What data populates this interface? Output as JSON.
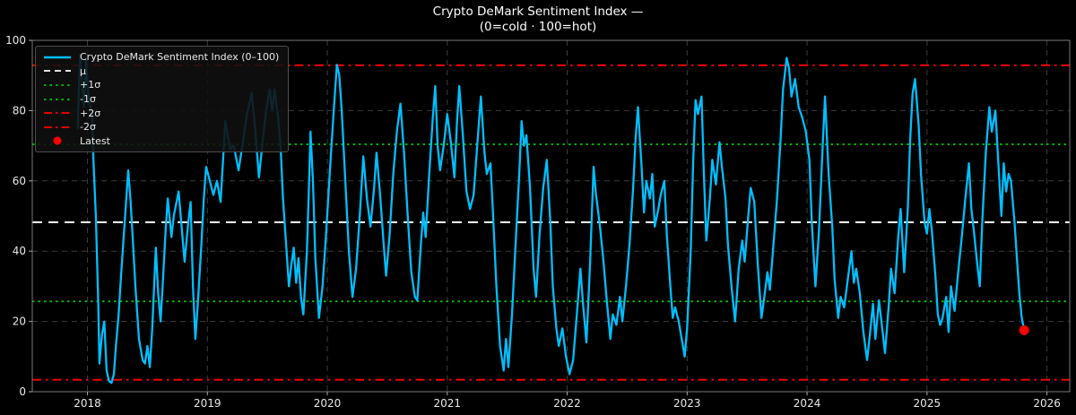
{
  "title": {
    "line1": "Crypto DeMark Sentiment Index —",
    "line2": "(0=cold · 100=hot)"
  },
  "legend": {
    "position": "upper left",
    "items": [
      {
        "label": "Crypto DeMark Sentiment Index (0–100)",
        "style": "solid",
        "color": "#00BFFF"
      },
      {
        "label": "μ",
        "style": "dashed",
        "color": "#FFFFFF"
      },
      {
        "label": "+1σ",
        "style": "dotted",
        "color": "#00CC00"
      },
      {
        "label": "-1σ",
        "style": "dotted",
        "color": "#00CC00"
      },
      {
        "label": "+2σ",
        "style": "dashdot",
        "color": "#FF0000"
      },
      {
        "label": "-2σ",
        "style": "dashdot",
        "color": "#FF0000"
      },
      {
        "label": "Latest",
        "style": "marker",
        "color": "#FF0000"
      }
    ]
  },
  "colors": {
    "background": "#000000",
    "text": "#e8e8e8",
    "grid": "#3d3d3d",
    "spine": "#787878",
    "series": "#00BFFF",
    "mean_line": "#FFFFFF",
    "sigma1_line": "#00CC00",
    "sigma2_line": "#FF0000",
    "latest_marker": "#FF0000"
  },
  "chart_data": {
    "type": "line",
    "title": "Crypto DeMark Sentiment Index —",
    "subtitle": "(0=cold · 100=hot)",
    "series_name": "Crypto DeMark Sentiment Index (0–100)",
    "xlabel": "",
    "ylabel": "",
    "xlim": [
      2017.54,
      2026.19
    ],
    "ylim": [
      0,
      100
    ],
    "x_ticks": [
      2018,
      2019,
      2020,
      2021,
      2022,
      2023,
      2024,
      2025,
      2026
    ],
    "y_ticks": [
      0,
      20,
      40,
      60,
      80,
      100
    ],
    "grid": true,
    "legend_position": "upper left",
    "stat_lines": {
      "mu": 48.2,
      "plus_1sigma": 70.4,
      "minus_1sigma": 25.7,
      "plus_2sigma": 92.9,
      "minus_2sigma": 3.4
    },
    "latest": {
      "x": 2025.81,
      "y": 17.5
    },
    "points": [
      [
        2017.92,
        75
      ],
      [
        2017.93,
        88
      ],
      [
        2017.94,
        96
      ],
      [
        2017.96,
        85
      ],
      [
        2017.97,
        81
      ],
      [
        2017.99,
        95
      ],
      [
        2018.0,
        87
      ],
      [
        2018.02,
        82
      ],
      [
        2018.04,
        78
      ],
      [
        2018.05,
        66
      ],
      [
        2018.07,
        50
      ],
      [
        2018.09,
        25
      ],
      [
        2018.1,
        8
      ],
      [
        2018.12,
        16
      ],
      [
        2018.14,
        20
      ],
      [
        2018.16,
        6
      ],
      [
        2018.18,
        3
      ],
      [
        2018.2,
        2.5
      ],
      [
        2018.22,
        5
      ],
      [
        2018.24,
        14
      ],
      [
        2018.26,
        22
      ],
      [
        2018.28,
        33
      ],
      [
        2018.31,
        48
      ],
      [
        2018.34,
        63
      ],
      [
        2018.36,
        54
      ],
      [
        2018.38,
        42
      ],
      [
        2018.4,
        30
      ],
      [
        2018.43,
        15
      ],
      [
        2018.46,
        9
      ],
      [
        2018.48,
        8
      ],
      [
        2018.5,
        13
      ],
      [
        2018.52,
        7
      ],
      [
        2018.54,
        18
      ],
      [
        2018.56,
        33
      ],
      [
        2018.57,
        41
      ],
      [
        2018.59,
        28
      ],
      [
        2018.61,
        20
      ],
      [
        2018.63,
        32
      ],
      [
        2018.65,
        45
      ],
      [
        2018.67,
        55
      ],
      [
        2018.7,
        44
      ],
      [
        2018.72,
        50
      ],
      [
        2018.76,
        57
      ],
      [
        2018.79,
        45
      ],
      [
        2018.81,
        37
      ],
      [
        2018.84,
        48
      ],
      [
        2018.86,
        54
      ],
      [
        2018.88,
        30
      ],
      [
        2018.9,
        15
      ],
      [
        2018.92,
        25
      ],
      [
        2018.95,
        42
      ],
      [
        2018.97,
        55
      ],
      [
        2018.99,
        64
      ],
      [
        2019.02,
        60
      ],
      [
        2019.05,
        56
      ],
      [
        2019.08,
        60
      ],
      [
        2019.11,
        54
      ],
      [
        2019.15,
        77
      ],
      [
        2019.19,
        69
      ],
      [
        2019.22,
        70
      ],
      [
        2019.26,
        63
      ],
      [
        2019.3,
        72
      ],
      [
        2019.33,
        79
      ],
      [
        2019.37,
        85
      ],
      [
        2019.4,
        74
      ],
      [
        2019.43,
        61
      ],
      [
        2019.46,
        71
      ],
      [
        2019.49,
        80
      ],
      [
        2019.52,
        86
      ],
      [
        2019.54,
        80
      ],
      [
        2019.56,
        86
      ],
      [
        2019.59,
        78
      ],
      [
        2019.61,
        70
      ],
      [
        2019.63,
        55
      ],
      [
        2019.66,
        40
      ],
      [
        2019.68,
        30
      ],
      [
        2019.7,
        36
      ],
      [
        2019.72,
        41
      ],
      [
        2019.74,
        31
      ],
      [
        2019.76,
        38
      ],
      [
        2019.78,
        27
      ],
      [
        2019.8,
        22
      ],
      [
        2019.83,
        40
      ],
      [
        2019.85,
        62
      ],
      [
        2019.86,
        74
      ],
      [
        2019.88,
        60
      ],
      [
        2019.9,
        38
      ],
      [
        2019.93,
        21
      ],
      [
        2019.96,
        30
      ],
      [
        2019.99,
        45
      ],
      [
        2020.02,
        62
      ],
      [
        2020.05,
        78
      ],
      [
        2020.08,
        93
      ],
      [
        2020.1,
        90
      ],
      [
        2020.12,
        80
      ],
      [
        2020.15,
        60
      ],
      [
        2020.18,
        40
      ],
      [
        2020.21,
        27
      ],
      [
        2020.24,
        35
      ],
      [
        2020.27,
        50
      ],
      [
        2020.3,
        67
      ],
      [
        2020.33,
        55
      ],
      [
        2020.36,
        47
      ],
      [
        2020.39,
        58
      ],
      [
        2020.41,
        68
      ],
      [
        2020.44,
        56
      ],
      [
        2020.47,
        42
      ],
      [
        2020.49,
        33
      ],
      [
        2020.52,
        45
      ],
      [
        2020.55,
        62
      ],
      [
        2020.58,
        74
      ],
      [
        2020.61,
        82
      ],
      [
        2020.64,
        68
      ],
      [
        2020.67,
        50
      ],
      [
        2020.7,
        34
      ],
      [
        2020.73,
        27
      ],
      [
        2020.75,
        26
      ],
      [
        2020.78,
        42
      ],
      [
        2020.8,
        51
      ],
      [
        2020.82,
        44
      ],
      [
        2020.85,
        62
      ],
      [
        2020.88,
        78
      ],
      [
        2020.9,
        87
      ],
      [
        2020.92,
        70
      ],
      [
        2020.94,
        63
      ],
      [
        2020.97,
        70
      ],
      [
        2021.0,
        79
      ],
      [
        2021.03,
        71
      ],
      [
        2021.06,
        61
      ],
      [
        2021.08,
        76
      ],
      [
        2021.1,
        87
      ],
      [
        2021.13,
        73
      ],
      [
        2021.16,
        57
      ],
      [
        2021.19,
        52
      ],
      [
        2021.22,
        56
      ],
      [
        2021.25,
        70
      ],
      [
        2021.28,
        84
      ],
      [
        2021.31,
        68
      ],
      [
        2021.33,
        62
      ],
      [
        2021.36,
        65
      ],
      [
        2021.38,
        52
      ],
      [
        2021.41,
        30
      ],
      [
        2021.44,
        13
      ],
      [
        2021.47,
        6
      ],
      [
        2021.49,
        15
      ],
      [
        2021.51,
        7
      ],
      [
        2021.54,
        22
      ],
      [
        2021.57,
        42
      ],
      [
        2021.6,
        62
      ],
      [
        2021.62,
        77
      ],
      [
        2021.64,
        70
      ],
      [
        2021.66,
        73
      ],
      [
        2021.69,
        58
      ],
      [
        2021.72,
        35
      ],
      [
        2021.74,
        27
      ],
      [
        2021.77,
        45
      ],
      [
        2021.8,
        58
      ],
      [
        2021.83,
        66
      ],
      [
        2021.86,
        48
      ],
      [
        2021.88,
        30
      ],
      [
        2021.91,
        18
      ],
      [
        2021.93,
        13
      ],
      [
        2021.96,
        18
      ],
      [
        2021.99,
        10
      ],
      [
        2022.02,
        5
      ],
      [
        2022.05,
        9
      ],
      [
        2022.08,
        22
      ],
      [
        2022.11,
        35
      ],
      [
        2022.13,
        26
      ],
      [
        2022.16,
        14
      ],
      [
        2022.19,
        36
      ],
      [
        2022.22,
        64
      ],
      [
        2022.24,
        56
      ],
      [
        2022.27,
        48
      ],
      [
        2022.3,
        38
      ],
      [
        2022.33,
        26
      ],
      [
        2022.36,
        15
      ],
      [
        2022.38,
        22
      ],
      [
        2022.41,
        19
      ],
      [
        2022.44,
        27
      ],
      [
        2022.46,
        20
      ],
      [
        2022.49,
        30
      ],
      [
        2022.52,
        42
      ],
      [
        2022.55,
        58
      ],
      [
        2022.57,
        72
      ],
      [
        2022.59,
        81
      ],
      [
        2022.62,
        64
      ],
      [
        2022.64,
        51
      ],
      [
        2022.66,
        60
      ],
      [
        2022.69,
        55
      ],
      [
        2022.71,
        62
      ],
      [
        2022.73,
        47
      ],
      [
        2022.76,
        52
      ],
      [
        2022.78,
        56
      ],
      [
        2022.81,
        60
      ],
      [
        2022.83,
        45
      ],
      [
        2022.86,
        30
      ],
      [
        2022.88,
        21
      ],
      [
        2022.9,
        24
      ],
      [
        2022.93,
        20
      ],
      [
        2022.95,
        16
      ],
      [
        2022.98,
        10
      ],
      [
        2023.0,
        18
      ],
      [
        2023.03,
        40
      ],
      [
        2023.05,
        65
      ],
      [
        2023.07,
        83
      ],
      [
        2023.09,
        79
      ],
      [
        2023.12,
        84
      ],
      [
        2023.14,
        62
      ],
      [
        2023.16,
        43
      ],
      [
        2023.19,
        55
      ],
      [
        2023.21,
        66
      ],
      [
        2023.24,
        59
      ],
      [
        2023.27,
        71
      ],
      [
        2023.29,
        64
      ],
      [
        2023.32,
        55
      ],
      [
        2023.34,
        42
      ],
      [
        2023.37,
        30
      ],
      [
        2023.4,
        20
      ],
      [
        2023.43,
        35
      ],
      [
        2023.46,
        43
      ],
      [
        2023.48,
        37
      ],
      [
        2023.51,
        50
      ],
      [
        2023.53,
        58
      ],
      [
        2023.56,
        54
      ],
      [
        2023.59,
        36
      ],
      [
        2023.62,
        21
      ],
      [
        2023.64,
        26
      ],
      [
        2023.67,
        34
      ],
      [
        2023.69,
        29
      ],
      [
        2023.72,
        42
      ],
      [
        2023.75,
        55
      ],
      [
        2023.78,
        72
      ],
      [
        2023.8,
        86
      ],
      [
        2023.83,
        95
      ],
      [
        2023.85,
        92
      ],
      [
        2023.87,
        84
      ],
      [
        2023.9,
        89
      ],
      [
        2023.93,
        81
      ],
      [
        2023.96,
        78
      ],
      [
        2023.99,
        74
      ],
      [
        2024.02,
        66
      ],
      [
        2024.04,
        48
      ],
      [
        2024.07,
        30
      ],
      [
        2024.1,
        46
      ],
      [
        2024.13,
        70
      ],
      [
        2024.15,
        84
      ],
      [
        2024.18,
        62
      ],
      [
        2024.21,
        47
      ],
      [
        2024.23,
        32
      ],
      [
        2024.26,
        21
      ],
      [
        2024.28,
        27
      ],
      [
        2024.31,
        24
      ],
      [
        2024.34,
        32
      ],
      [
        2024.37,
        40
      ],
      [
        2024.39,
        31
      ],
      [
        2024.41,
        35
      ],
      [
        2024.44,
        28
      ],
      [
        2024.47,
        17
      ],
      [
        2024.5,
        9
      ],
      [
        2024.52,
        15
      ],
      [
        2024.55,
        25
      ],
      [
        2024.57,
        15
      ],
      [
        2024.6,
        26
      ],
      [
        2024.62,
        20
      ],
      [
        2024.65,
        11
      ],
      [
        2024.68,
        24
      ],
      [
        2024.7,
        35
      ],
      [
        2024.73,
        28
      ],
      [
        2024.76,
        44
      ],
      [
        2024.78,
        52
      ],
      [
        2024.81,
        34
      ],
      [
        2024.84,
        52
      ],
      [
        2024.86,
        72
      ],
      [
        2024.88,
        85
      ],
      [
        2024.9,
        89
      ],
      [
        2024.93,
        76
      ],
      [
        2024.95,
        62
      ],
      [
        2024.98,
        48
      ],
      [
        2025.0,
        45
      ],
      [
        2025.02,
        52
      ],
      [
        2025.04,
        46
      ],
      [
        2025.07,
        33
      ],
      [
        2025.09,
        22
      ],
      [
        2025.11,
        19
      ],
      [
        2025.13,
        21
      ],
      [
        2025.16,
        27
      ],
      [
        2025.18,
        17
      ],
      [
        2025.2,
        30
      ],
      [
        2025.23,
        23
      ],
      [
        2025.26,
        34
      ],
      [
        2025.29,
        44
      ],
      [
        2025.32,
        55
      ],
      [
        2025.35,
        65
      ],
      [
        2025.37,
        52
      ],
      [
        2025.39,
        46
      ],
      [
        2025.42,
        36
      ],
      [
        2025.44,
        30
      ],
      [
        2025.46,
        48
      ],
      [
        2025.49,
        68
      ],
      [
        2025.52,
        81
      ],
      [
        2025.54,
        74
      ],
      [
        2025.57,
        80
      ],
      [
        2025.6,
        62
      ],
      [
        2025.62,
        50
      ],
      [
        2025.64,
        65
      ],
      [
        2025.66,
        57
      ],
      [
        2025.68,
        62
      ],
      [
        2025.7,
        60
      ],
      [
        2025.73,
        48
      ],
      [
        2025.75,
        38
      ],
      [
        2025.77,
        28
      ],
      [
        2025.79,
        21
      ],
      [
        2025.81,
        17.5
      ]
    ]
  }
}
